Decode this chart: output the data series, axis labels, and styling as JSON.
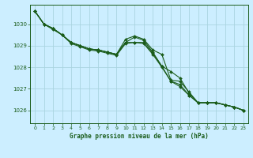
{
  "background_color": "#cceeff",
  "grid_color": "#aad4e0",
  "line_color": "#1a5c1a",
  "title": "Graphe pression niveau de la mer (hPa)",
  "xlim": [
    -0.5,
    23.5
  ],
  "ylim": [
    1025.4,
    1030.9
  ],
  "yticks": [
    1026,
    1027,
    1028,
    1029,
    1030
  ],
  "xticks": [
    0,
    1,
    2,
    3,
    4,
    5,
    6,
    7,
    8,
    9,
    10,
    11,
    12,
    13,
    14,
    15,
    16,
    17,
    18,
    19,
    20,
    21,
    22,
    23
  ],
  "series": [
    {
      "x": [
        0,
        1,
        2,
        3,
        4,
        5,
        6,
        7,
        8,
        9,
        10,
        11,
        12,
        13,
        14,
        15,
        16,
        17,
        18,
        19,
        20,
        21,
        22,
        23
      ],
      "y": [
        1030.6,
        1030.0,
        1029.75,
        1029.5,
        1029.1,
        1028.95,
        1028.8,
        1028.75,
        1028.65,
        1028.55,
        1029.1,
        1029.15,
        1029.1,
        1028.6,
        1028.0,
        1027.35,
        1027.1,
        1026.7,
        1026.35,
        1026.35,
        1026.35,
        1026.25,
        1026.15,
        1026.0
      ]
    },
    {
      "x": [
        0,
        1,
        2,
        3,
        4,
        5,
        6,
        7,
        8,
        9,
        10,
        11,
        12,
        13,
        14,
        15,
        16,
        17,
        18,
        19,
        20,
        21,
        22,
        23
      ],
      "y": [
        1030.6,
        1030.0,
        1029.8,
        1029.5,
        1029.15,
        1029.0,
        1028.85,
        1028.8,
        1028.7,
        1028.6,
        1029.15,
        1029.4,
        1029.25,
        1028.7,
        1028.05,
        1027.8,
        1027.5,
        1026.8,
        1026.35,
        1026.35,
        1026.35,
        1026.25,
        1026.15,
        1026.0
      ]
    },
    {
      "x": [
        0,
        1,
        2,
        3,
        4,
        5,
        6,
        7,
        8,
        9,
        10,
        11,
        12,
        13,
        14,
        15,
        16,
        17,
        18,
        19,
        20,
        21,
        22,
        23
      ],
      "y": [
        1030.6,
        1030.0,
        1029.8,
        1029.5,
        1029.15,
        1029.0,
        1028.85,
        1028.8,
        1028.7,
        1028.6,
        1029.3,
        1029.45,
        1029.3,
        1028.8,
        1028.6,
        1027.4,
        1027.35,
        1026.85,
        1026.35,
        1026.35,
        1026.35,
        1026.25,
        1026.15,
        1026.0
      ]
    },
    {
      "x": [
        0,
        1,
        2,
        3,
        4,
        5,
        6,
        7,
        8,
        9,
        10,
        11,
        12,
        13,
        14,
        15,
        16,
        17,
        18,
        19,
        20,
        21,
        22,
        23
      ],
      "y": [
        1030.6,
        1030.0,
        1029.8,
        1029.5,
        1029.15,
        1029.0,
        1028.85,
        1028.8,
        1028.7,
        1028.6,
        1029.15,
        1029.15,
        1029.15,
        1028.65,
        1028.05,
        1027.35,
        1027.2,
        1026.7,
        1026.35,
        1026.35,
        1026.35,
        1026.25,
        1026.15,
        1026.0
      ]
    }
  ]
}
